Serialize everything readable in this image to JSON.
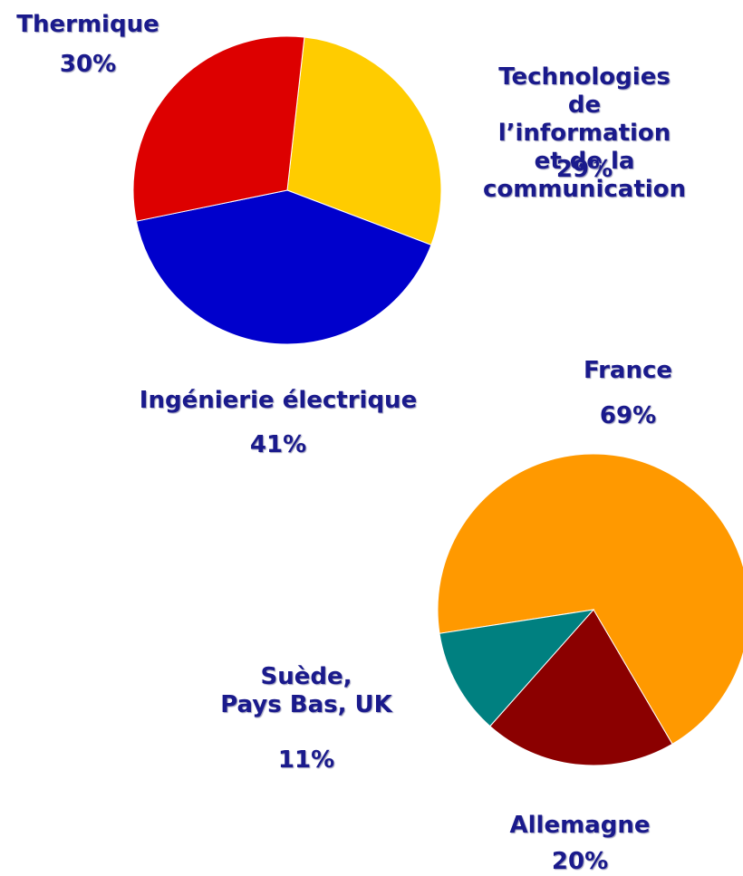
{
  "chart_data": [
    {
      "type": "pie",
      "categories": [
        "Technologies de\nl’information et de la\ncommunication",
        "Ingénierie électrique",
        "Thermique"
      ],
      "values": [
        29,
        41,
        30
      ],
      "value_labels": [
        "29%",
        "41%",
        "30%"
      ],
      "colors": [
        "#ffcc00",
        "#0000cc",
        "#dd0000"
      ]
    },
    {
      "type": "pie",
      "categories": [
        "France",
        "Allemagne",
        "Suède,\nPays Bas, UK"
      ],
      "values": [
        69,
        20,
        11
      ],
      "value_labels": [
        "69%",
        "20%",
        "11%"
      ],
      "colors": [
        "#ff9900",
        "#8b0000",
        "#008080"
      ]
    }
  ]
}
